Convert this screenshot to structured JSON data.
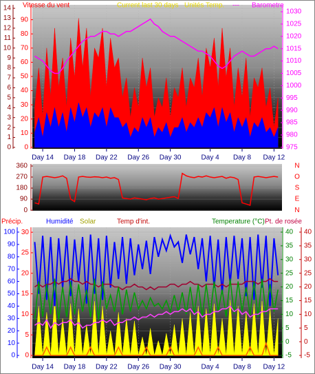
{
  "chart_data": [
    {
      "type": "line",
      "grid": true,
      "notes": [
        "Current last 30 days",
        "Unités Temp.",
        "---"
      ],
      "note_colors": [
        "#e8d800",
        "#e8d800",
        "#ff00ff"
      ],
      "xlim": [
        12.7,
        44
      ],
      "xticks": [
        {
          "value": 14,
          "label": "Day 14"
        },
        {
          "value": 18,
          "label": "Day 18"
        },
        {
          "value": 22,
          "label": "Day 22"
        },
        {
          "value": 26,
          "label": "Day 26"
        },
        {
          "value": 30,
          "label": "Day 30"
        },
        {
          "value": 35,
          "label": "Day 4"
        },
        {
          "value": 39,
          "label": "Day 8"
        },
        {
          "value": 43,
          "label": "Day 12"
        }
      ],
      "ylim": [
        -0.14,
        14.35
      ],
      "yticks": [
        0,
        1,
        2,
        3,
        4,
        5,
        6,
        7,
        8,
        9,
        10,
        11,
        12,
        13,
        14
      ],
      "y3lim": [
        -1,
        100.5
      ],
      "y3ticks": [
        0,
        10,
        20,
        30,
        40,
        50,
        60,
        70,
        80,
        90
      ],
      "y2lim": [
        974.4,
        1032.8
      ],
      "y2ticks": [
        975,
        980,
        985,
        990,
        995,
        1000,
        1005,
        1010,
        1015,
        1020,
        1025,
        1030
      ],
      "axis_colors": {
        "y": "#8b0000",
        "y3": "#ff0000",
        "y2": "#ff00ff"
      },
      "x": [
        13,
        13.5,
        14,
        14.5,
        15,
        15.5,
        16,
        16.5,
        17,
        17.5,
        18,
        18.5,
        19,
        19.5,
        20,
        20.5,
        21,
        21.5,
        22,
        22.5,
        23,
        23.5,
        24,
        24.5,
        25,
        25.5,
        26,
        26.5,
        27,
        27.5,
        28,
        28.5,
        29,
        29.5,
        30,
        30.5,
        31,
        31.5,
        32,
        32.5,
        33,
        33.5,
        34,
        34.5,
        35,
        35.5,
        36,
        36.5,
        37,
        37.5,
        38,
        38.5,
        39,
        39.5,
        40,
        40.5,
        41,
        41.5,
        42,
        42.5,
        43,
        43.5
      ],
      "series": [
        {
          "name": "Vitesse du vent",
          "color": "#ff0000",
          "kind": "area",
          "axis": "y",
          "values": [
            4,
            8,
            3,
            10,
            5,
            12,
            6,
            9,
            4,
            11,
            7,
            13,
            8,
            12,
            5,
            10,
            9,
            12,
            6,
            11,
            8,
            9,
            5,
            7,
            3,
            6,
            4,
            9,
            6,
            8,
            3,
            5,
            4,
            7,
            3,
            6,
            5,
            8,
            4,
            7,
            6,
            9,
            5,
            10,
            8,
            11,
            6,
            12,
            7,
            10,
            4,
            8,
            5,
            9,
            3,
            7,
            6,
            8,
            4,
            6,
            2,
            5
          ]
        },
        {
          "color": "#0000ff",
          "kind": "area",
          "axis": "y",
          "values": [
            1.5,
            3,
            1,
            3.5,
            2,
            4,
            2,
            3.5,
            1.5,
            4,
            2.5,
            4.5,
            3,
            4,
            2,
            3.5,
            3,
            4,
            2,
            4,
            3,
            3,
            2,
            2.5,
            1,
            2,
            1.5,
            3,
            2,
            3,
            1,
            2,
            1.5,
            2.5,
            1,
            2,
            2,
            3,
            1.5,
            2.5,
            2,
            3,
            2,
            3.5,
            3,
            4,
            2,
            4,
            2.5,
            3.5,
            1.5,
            3,
            2,
            3,
            1,
            2.5,
            2,
            3,
            1.5,
            2,
            1,
            2
          ]
        },
        {
          "name": "Barometre",
          "color": "#ff00ff",
          "kind": "line",
          "axis": "y2",
          "values": [
            1012,
            1011,
            1010,
            1008,
            1006,
            1005,
            1005,
            1007,
            1010,
            1012,
            1014,
            1016,
            1018,
            1019,
            1020,
            1020,
            1021,
            1022,
            1022,
            1021,
            1021,
            1020,
            1021,
            1022,
            1022,
            1023,
            1024,
            1025,
            1026,
            1027,
            1025,
            1024,
            1022,
            1021,
            1020,
            1020,
            1019,
            1018,
            1017,
            1016,
            1015,
            1014,
            1014,
            1013,
            1012,
            1010,
            1008,
            1007,
            1008,
            1010,
            1012,
            1013,
            1014,
            1013,
            1012,
            1012,
            1013,
            1014,
            1015,
            1015,
            1016,
            1015
          ]
        }
      ]
    },
    {
      "type": "line",
      "grid": true,
      "compass": [
        "N",
        "O",
        "S",
        "E",
        "N"
      ],
      "xlim": [
        12.7,
        44
      ],
      "ylim": [
        -5,
        377
      ],
      "yticks": [
        0,
        90,
        180,
        270,
        360
      ],
      "axis_colors": {
        "y": "#8b0000"
      },
      "x": [
        13,
        13.5,
        14,
        14.5,
        15,
        15.5,
        16,
        16.5,
        17,
        17.5,
        18,
        18.5,
        19,
        19.5,
        20,
        20.5,
        21,
        21.5,
        22,
        22.5,
        23,
        23.5,
        24,
        24.5,
        25,
        25.5,
        26,
        26.5,
        27,
        27.5,
        28,
        28.5,
        29,
        29.5,
        30,
        30.5,
        31,
        31.5,
        32,
        32.5,
        33,
        33.5,
        34,
        34.5,
        35,
        35.5,
        36,
        36.5,
        37,
        37.5,
        38,
        38.5,
        39,
        39.5,
        40,
        40.5,
        41,
        41.5,
        42,
        42.5,
        43,
        43.5
      ],
      "series": [
        {
          "color": "#ff0000",
          "kind": "line",
          "axis": "y",
          "values": [
            60,
            50,
            270,
            275,
            270,
            265,
            270,
            280,
            260,
            90,
            70,
            270,
            275,
            270,
            268,
            272,
            270,
            265,
            270,
            260,
            265,
            250,
            100,
            95,
            90,
            100,
            95,
            90,
            85,
            95,
            100,
            90,
            95,
            100,
            105,
            110,
            95,
            300,
            280,
            270,
            265,
            275,
            270,
            280,
            270,
            265,
            270,
            275,
            260,
            270,
            265,
            250,
            60,
            50,
            40,
            270,
            275,
            270,
            265,
            270,
            275,
            270
          ]
        }
      ]
    },
    {
      "type": "line",
      "grid": true,
      "xlim": [
        12.7,
        44
      ],
      "xticks": [
        {
          "value": 14,
          "label": "Day 14"
        },
        {
          "value": 18,
          "label": "Day 18"
        },
        {
          "value": 22,
          "label": "Day 22"
        },
        {
          "value": 26,
          "label": "Day 26"
        },
        {
          "value": 30,
          "label": "Day 30"
        },
        {
          "value": 35,
          "label": "Day 4"
        },
        {
          "value": 39,
          "label": "Day 8"
        },
        {
          "value": 43,
          "label": "Day 12"
        }
      ],
      "ylim": [
        -2.2,
        103.9
      ],
      "yticks": [
        0,
        10,
        20,
        30,
        40,
        50,
        60,
        70,
        80,
        90,
        100
      ],
      "y3lim": [
        -0.67,
        31.2
      ],
      "y3ticks": [
        0,
        5,
        10,
        15,
        20,
        25,
        30
      ],
      "y2lim": [
        -6,
        41.76
      ],
      "y2ticks": [
        -5,
        0,
        5,
        10,
        15,
        20,
        25,
        30,
        35,
        40
      ],
      "y4lim": [
        -6,
        41.76
      ],
      "y4ticks": [
        -5,
        0,
        5,
        10,
        15,
        20,
        25,
        30,
        35,
        40
      ],
      "axis_colors": {
        "y": "#0000ff",
        "y3": "#ff0000",
        "y2": "#008000",
        "y4": "#c00000"
      },
      "x": [
        13,
        13.5,
        14,
        14.5,
        15,
        15.5,
        16,
        16.5,
        17,
        17.5,
        18,
        18.5,
        19,
        19.5,
        20,
        20.5,
        21,
        21.5,
        22,
        22.5,
        23,
        23.5,
        24,
        24.5,
        25,
        25.5,
        26,
        26.5,
        27,
        27.5,
        28,
        28.5,
        29,
        29.5,
        30,
        30.5,
        31,
        31.5,
        32,
        32.5,
        33,
        33.5,
        34,
        34.5,
        35,
        35.5,
        36,
        36.5,
        37,
        37.5,
        38,
        38.5,
        39,
        39.5,
        40,
        40.5,
        41,
        41.5,
        42,
        42.5,
        43,
        43.5
      ],
      "series": [
        {
          "name": "Précip.",
          "color": "#ff6000",
          "label_color": "#ff0000",
          "kind": "line",
          "axis": "y3",
          "values": [
            0,
            0,
            0,
            2,
            0,
            0,
            0,
            0,
            0,
            2,
            0,
            0,
            0,
            0,
            2,
            0,
            0,
            0,
            0,
            0,
            0,
            2,
            0,
            0,
            0,
            0,
            0,
            0,
            2,
            0,
            0,
            0,
            0,
            0,
            2,
            0,
            0,
            0,
            0,
            0,
            0,
            2,
            0,
            0,
            0,
            0,
            2,
            0,
            0,
            0,
            0,
            0,
            0,
            0,
            2,
            0,
            0,
            0,
            3,
            0,
            0,
            0
          ]
        },
        {
          "name": "Humidité",
          "color": "#0000ff",
          "label_color": "#0000ff",
          "kind": "line",
          "axis": "y",
          "values": [
            92,
            50,
            97,
            45,
            96,
            40,
            95,
            55,
            97,
            48,
            94,
            60,
            96,
            42,
            98,
            50,
            95,
            45,
            97,
            55,
            92,
            62,
            96,
            58,
            95,
            65,
            90,
            70,
            93,
            66,
            96,
            80,
            94,
            85,
            97,
            88,
            92,
            75,
            98,
            82,
            96,
            70,
            95,
            60,
            97,
            55,
            94,
            50,
            96,
            58,
            97,
            62,
            95,
            48,
            96,
            45,
            98,
            55,
            97,
            40,
            95,
            65
          ]
        },
        {
          "name": "Solar",
          "color": "#ffff00",
          "label_color": "#a0a000",
          "kind": "area",
          "axis": "y",
          "values": [
            0,
            40,
            0,
            35,
            0,
            45,
            0,
            30,
            0,
            42,
            0,
            38,
            0,
            25,
            0,
            44,
            0,
            40,
            0,
            20,
            0,
            35,
            0,
            30,
            0,
            28,
            0,
            15,
            0,
            22,
            0,
            12,
            0,
            18,
            0,
            25,
            0,
            30,
            0,
            35,
            0,
            40,
            0,
            38,
            0,
            42,
            0,
            30,
            0,
            45,
            0,
            40,
            0,
            35,
            0,
            42,
            0,
            44,
            0,
            38,
            0,
            30
          ]
        },
        {
          "name": "Temp d'int.",
          "color": "#a00030",
          "label_color": "#c00000",
          "kind": "line",
          "axis": "y2",
          "values": [
            20,
            21,
            20,
            21,
            21,
            22,
            21,
            22,
            22,
            23,
            22,
            22,
            21,
            22,
            21,
            21,
            20,
            21,
            21,
            21,
            20,
            20,
            19,
            20,
            20,
            21,
            20,
            20,
            19,
            20,
            19,
            20,
            20,
            20,
            21,
            21,
            20,
            21,
            21,
            22,
            21,
            21,
            20,
            21,
            21,
            21,
            20,
            21,
            20,
            21,
            21,
            21,
            21,
            22,
            22,
            22,
            21,
            22,
            22,
            23,
            22,
            22
          ]
        },
        {
          "name": "Temperature (°C)",
          "color": "#00a000",
          "label_color": "#008000",
          "kind": "line",
          "axis": "y2",
          "values": [
            8,
            22,
            9,
            21,
            10,
            23,
            8,
            20,
            9,
            22,
            10,
            21,
            11,
            19,
            9,
            23,
            8,
            22,
            12,
            17,
            11,
            20,
            10,
            19,
            11,
            18,
            12,
            15,
            12,
            16,
            13,
            14,
            12,
            15,
            11,
            17,
            11,
            18,
            10,
            20,
            10,
            21,
            9,
            21,
            10,
            22,
            11,
            19,
            9,
            23,
            10,
            22,
            11,
            20,
            10,
            22,
            9,
            23,
            10,
            21,
            11,
            19
          ]
        },
        {
          "name": "Pt. de rosée",
          "color": "#ff40ff",
          "label_color": "#c00040",
          "kind": "line",
          "axis": "y4",
          "values": [
            6,
            7,
            6,
            8,
            5,
            7,
            6,
            7,
            7,
            8,
            6,
            7,
            5,
            6,
            6,
            7,
            7,
            8,
            7,
            8,
            6,
            7,
            7,
            8,
            8,
            9,
            8,
            9,
            9,
            10,
            9,
            10,
            10,
            11,
            10,
            11,
            11,
            12,
            11,
            12,
            10,
            11,
            9,
            10,
            10,
            11,
            11,
            12,
            12,
            13,
            11,
            12,
            10,
            11,
            9,
            10,
            10,
            11,
            11,
            12,
            12,
            12
          ]
        }
      ]
    }
  ]
}
